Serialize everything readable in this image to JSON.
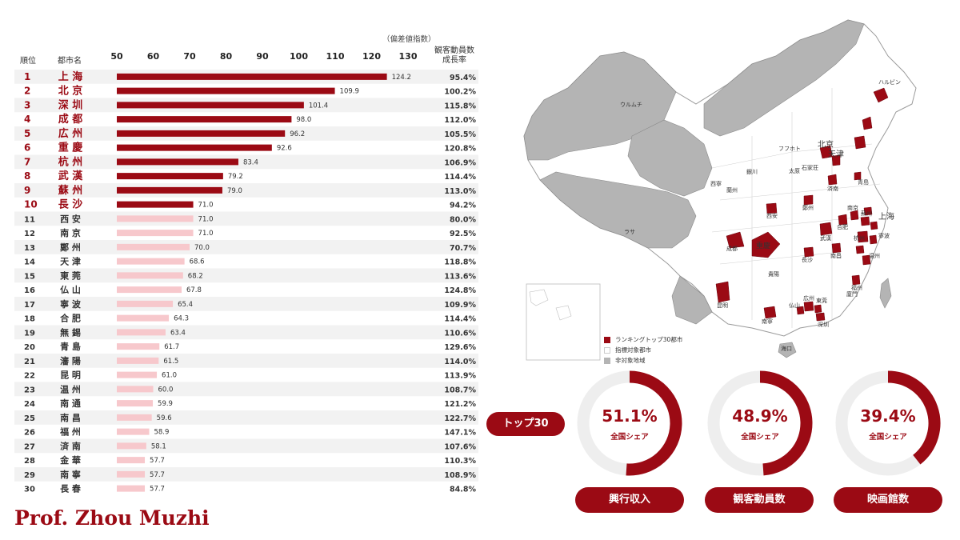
{
  "header": {
    "rank_label": "順位",
    "city_label": "都市名",
    "scale_note": "（偏差値指数）",
    "growth_label_1": "観客動員数",
    "growth_label_2": "成長率"
  },
  "colors": {
    "top10": "#9b0a14",
    "rest": "#f7c8cc",
    "stripe": "#f2f2f2"
  },
  "chart_data": {
    "type": "bar",
    "orientation": "horizontal",
    "xlim": [
      50,
      130
    ],
    "ticks": [
      "50",
      "60",
      "70",
      "80",
      "90",
      "100",
      "110",
      "120",
      "130"
    ],
    "rows": [
      {
        "rank": "1",
        "city": "上 海",
        "value": 124.2,
        "label": "124.2",
        "growth": "95.4%"
      },
      {
        "rank": "2",
        "city": "北 京",
        "value": 109.9,
        "label": "109.9",
        "growth": "100.2%"
      },
      {
        "rank": "3",
        "city": "深 圳",
        "value": 101.4,
        "label": "101.4",
        "growth": "115.8%"
      },
      {
        "rank": "4",
        "city": "成 都",
        "value": 98.0,
        "label": "98.0",
        "growth": "112.0%"
      },
      {
        "rank": "5",
        "city": "広 州",
        "value": 96.2,
        "label": "96.2",
        "growth": "105.5%"
      },
      {
        "rank": "6",
        "city": "重 慶",
        "value": 92.6,
        "label": "92.6",
        "growth": "120.8%"
      },
      {
        "rank": "7",
        "city": "杭 州",
        "value": 83.4,
        "label": "83.4",
        "growth": "106.9%"
      },
      {
        "rank": "8",
        "city": "武 漢",
        "value": 79.2,
        "label": "79.2",
        "growth": "114.4%"
      },
      {
        "rank": "9",
        "city": "蘇 州",
        "value": 79.0,
        "label": "79.0",
        "growth": "113.0%"
      },
      {
        "rank": "10",
        "city": "長 沙",
        "value": 71.0,
        "label": "71.0",
        "growth": "94.2%"
      },
      {
        "rank": "11",
        "city": "西 安",
        "value": 71.0,
        "label": "71.0",
        "growth": "80.0%"
      },
      {
        "rank": "12",
        "city": "南 京",
        "value": 71.0,
        "label": "71.0",
        "growth": "92.5%"
      },
      {
        "rank": "13",
        "city": "鄭 州",
        "value": 70.0,
        "label": "70.0",
        "growth": "70.7%"
      },
      {
        "rank": "14",
        "city": "天 津",
        "value": 68.6,
        "label": "68.6",
        "growth": "118.8%"
      },
      {
        "rank": "15",
        "city": "東 莞",
        "value": 68.2,
        "label": "68.2",
        "growth": "113.6%"
      },
      {
        "rank": "16",
        "city": "仏 山",
        "value": 67.8,
        "label": "67.8",
        "growth": "124.8%"
      },
      {
        "rank": "17",
        "city": "寧 波",
        "value": 65.4,
        "label": "65.4",
        "growth": "109.9%"
      },
      {
        "rank": "18",
        "city": "合 肥",
        "value": 64.3,
        "label": "64.3",
        "growth": "114.4%"
      },
      {
        "rank": "19",
        "city": "無 錫",
        "value": 63.4,
        "label": "63.4",
        "growth": "110.6%"
      },
      {
        "rank": "20",
        "city": "青 島",
        "value": 61.7,
        "label": "61.7",
        "growth": "129.6%"
      },
      {
        "rank": "21",
        "city": "瀋 陽",
        "value": 61.5,
        "label": "61.5",
        "growth": "114.0%"
      },
      {
        "rank": "22",
        "city": "昆 明",
        "value": 61.0,
        "label": "61.0",
        "growth": "113.9%"
      },
      {
        "rank": "23",
        "city": "温 州",
        "value": 60.0,
        "label": "60.0",
        "growth": "108.7%"
      },
      {
        "rank": "24",
        "city": "南 通",
        "value": 59.9,
        "label": "59.9",
        "growth": "121.2%"
      },
      {
        "rank": "25",
        "city": "南 昌",
        "value": 59.6,
        "label": "59.6",
        "growth": "122.7%"
      },
      {
        "rank": "26",
        "city": "福 州",
        "value": 58.9,
        "label": "58.9",
        "growth": "147.1%"
      },
      {
        "rank": "27",
        "city": "済 南",
        "value": 58.1,
        "label": "58.1",
        "growth": "107.6%"
      },
      {
        "rank": "28",
        "city": "金 華",
        "value": 57.7,
        "label": "57.7",
        "growth": "110.3%"
      },
      {
        "rank": "29",
        "city": "南 寧",
        "value": 57.7,
        "label": "57.7",
        "growth": "108.9%"
      },
      {
        "rank": "30",
        "city": "長 春",
        "value": 57.7,
        "label": "57.7",
        "growth": "84.8%"
      }
    ]
  },
  "map": {
    "city_labels": [
      "ハルビン",
      "ウルムチ",
      "フフホト",
      "北京",
      "天津",
      "銀川",
      "太原",
      "石家荘",
      "西寧",
      "蘭州",
      "済南",
      "青島",
      "鄭州",
      "西安",
      "ラサ",
      "成都",
      "重慶",
      "武漢",
      "合肥",
      "南京",
      "蘇州",
      "上海",
      "寧波",
      "杭州",
      "温州",
      "南昌",
      "長沙",
      "福州",
      "貴陽",
      "南寧",
      "昆明",
      "広州",
      "深圳",
      "仏山",
      "東莞",
      "廈門",
      "海口"
    ],
    "legend": [
      {
        "label": "ランキングトップ30都市",
        "color": "#9b0a14"
      },
      {
        "label": "指標対象都市",
        "color": "#ffffff"
      },
      {
        "label": "非対象地域",
        "color": "#b4b4b4"
      }
    ]
  },
  "summary": {
    "top30_label": "トップ30",
    "gauges": [
      {
        "pct": "51.1%",
        "fraction": 0.511,
        "sub": "全国シェア",
        "metric": "興行収入"
      },
      {
        "pct": "48.9%",
        "fraction": 0.489,
        "sub": "全国シェア",
        "metric": "観客動員数"
      },
      {
        "pct": "39.4%",
        "fraction": 0.394,
        "sub": "全国シェア",
        "metric": "映画館数"
      }
    ]
  },
  "author": "Prof. Zhou Muzhi"
}
